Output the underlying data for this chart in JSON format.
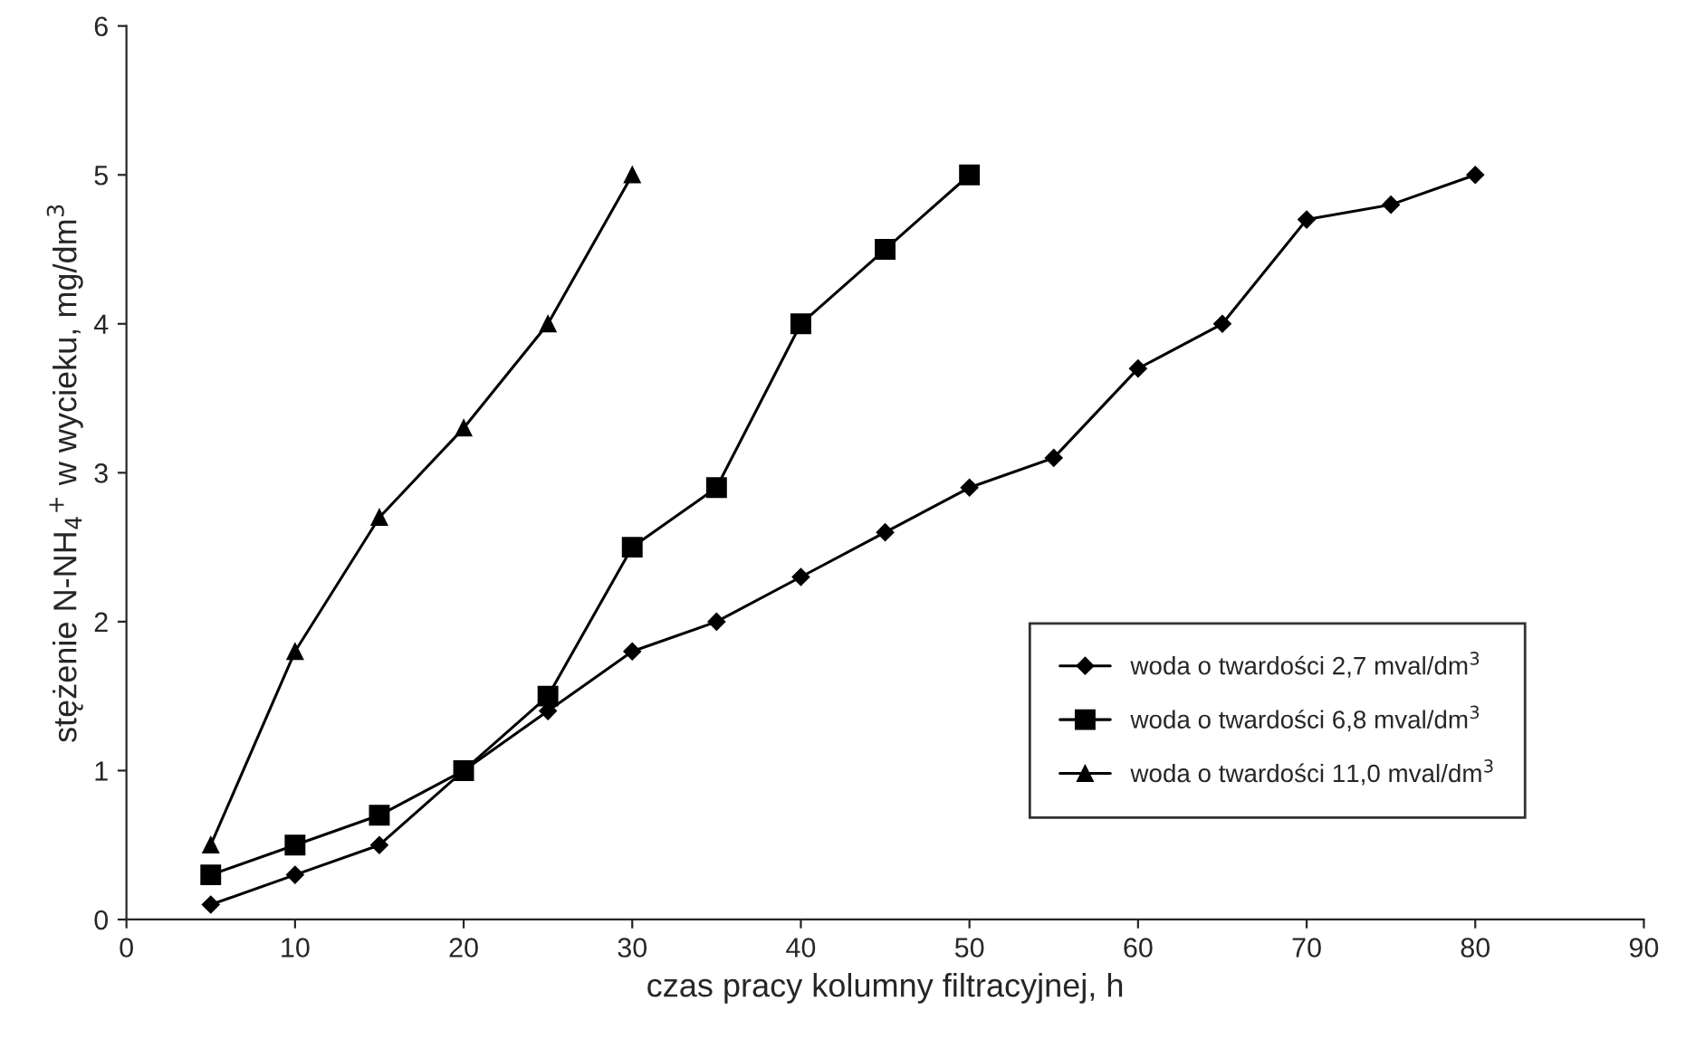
{
  "chart_data": {
    "type": "line",
    "xlabel": "czas pracy kolumny filtracyjnej, h",
    "ylabel": "stężenie N-NH$_{4}$$^{+}$ w wycieku, mg/dm$^{3}$",
    "xlim": [
      0,
      90
    ],
    "xticks": [
      0,
      10,
      20,
      30,
      40,
      50,
      60,
      70,
      80,
      90
    ],
    "ylim": [
      0,
      6
    ],
    "yticks": [
      0,
      1,
      2,
      3,
      4,
      5,
      6
    ],
    "grid": false,
    "legend": "bottom right",
    "line_style": "solid",
    "series": [
      {
        "name": "woda o twardości 2,7 mval/dm$^{3}$",
        "color": "#000000",
        "marker": "diamond",
        "x": [
          5,
          10,
          15,
          20,
          25,
          30,
          35,
          40,
          45,
          50,
          55,
          60,
          65,
          70,
          75,
          80
        ],
        "values": [
          0.1,
          0.3,
          0.5,
          1.0,
          1.4,
          1.8,
          2.0,
          2.3,
          2.6,
          2.9,
          3.1,
          3.7,
          4.0,
          4.7,
          4.8,
          5.0
        ]
      },
      {
        "name": "woda o twardości 6,8 mval/dm$^{3}$",
        "color": "#000000",
        "marker": "square",
        "x": [
          5,
          10,
          15,
          20,
          25,
          30,
          35,
          40,
          45,
          50
        ],
        "values": [
          0.3,
          0.5,
          0.7,
          1.0,
          1.5,
          2.5,
          2.9,
          4.0,
          4.5,
          5.0
        ]
      },
      {
        "name": "woda o twardości 11,0 mval/dm$^{3}$",
        "color": "#000000",
        "marker": "triangle",
        "x": [
          5,
          10,
          15,
          20,
          25,
          30
        ],
        "values": [
          0.5,
          1.8,
          2.7,
          3.3,
          4.0,
          5.0
        ]
      }
    ]
  }
}
